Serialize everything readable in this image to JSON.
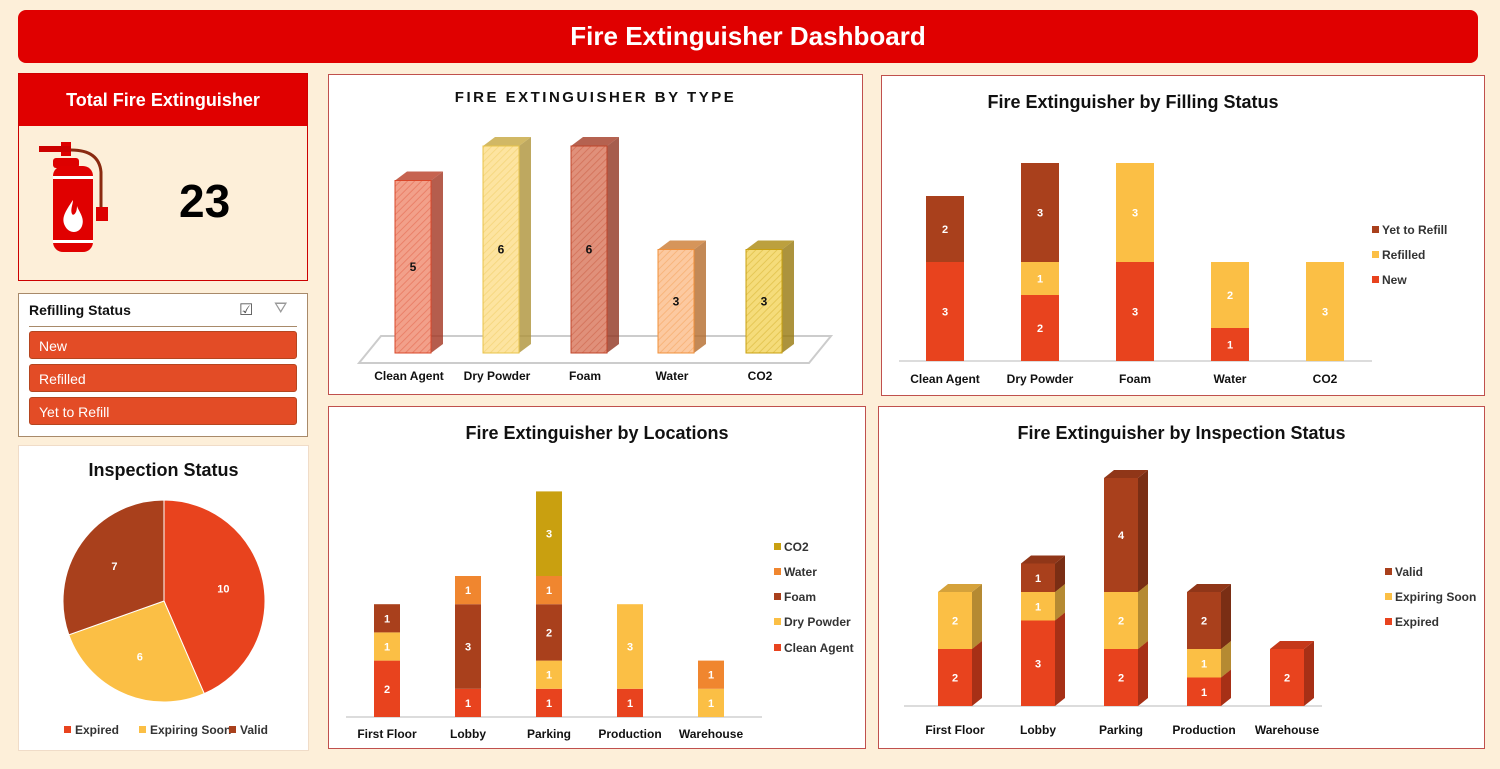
{
  "header": {
    "title": "Fire Extinguisher Dashboard"
  },
  "total_card": {
    "title": "Total Fire Extinguisher",
    "value": "23",
    "icon": "fire-extinguisher-icon"
  },
  "slicer": {
    "title": "Refilling Status",
    "items": [
      "New",
      "Refilled",
      "Yet to Refill"
    ],
    "icons": [
      "multi-select-icon",
      "clear-filter-icon"
    ]
  },
  "colors": {
    "red": "#e8431e",
    "yellow": "#fbbf45",
    "brown": "#a9401c",
    "orange": "#f0862f",
    "gold": "#c9a010",
    "header": "#e00000"
  },
  "chart_data": [
    {
      "id": "pie",
      "type": "pie",
      "title": "Inspection Status",
      "categories": [
        "Expired",
        "Expiring Soon",
        "Valid"
      ],
      "values": [
        10,
        6,
        7
      ],
      "colors": [
        "#e8431e",
        "#fbbf45",
        "#a9401c"
      ],
      "legend": "bottom"
    },
    {
      "id": "type",
      "type": "bar",
      "title": "FIRE EXTINGUISHER BY TYPE",
      "categories": [
        "Clean Agent",
        "Dry Powder",
        "Foam",
        "Water",
        "CO2"
      ],
      "values": [
        5,
        6,
        6,
        3,
        3
      ],
      "colors": [
        "#f2a08a",
        "#fde4a0",
        "#e0907a",
        "#fcc9a0",
        "#f5dc7a"
      ],
      "edges": [
        "#d9472a",
        "#e8c34a",
        "#c0452a",
        "#f0903a",
        "#c9a010"
      ],
      "ylim": [
        0,
        6
      ]
    },
    {
      "id": "filling",
      "type": "bar",
      "stacked": true,
      "title": "Fire Extinguisher by  Filling Status",
      "categories": [
        "Clean Agent",
        "Dry Powder",
        "Foam",
        "Water",
        "CO2"
      ],
      "series": [
        {
          "name": "New",
          "values": [
            3,
            2,
            3,
            1,
            0
          ],
          "color": "#e8431e"
        },
        {
          "name": "Refilled",
          "values": [
            0,
            1,
            3,
            2,
            3
          ],
          "color": "#fbbf45"
        },
        {
          "name": "Yet to Refill",
          "values": [
            2,
            3,
            0,
            0,
            0
          ],
          "color": "#a9401c"
        }
      ],
      "legend": "right",
      "legend_order": [
        "Yet to Refill",
        "Refilled",
        "New"
      ]
    },
    {
      "id": "locations",
      "type": "bar",
      "stacked": true,
      "title": "Fire Extinguisher by Locations",
      "categories": [
        "First Floor",
        "Lobby",
        "Parking",
        "Production",
        "Warehouse"
      ],
      "series": [
        {
          "name": "Clean Agent",
          "values": [
            2,
            1,
            1,
            1,
            0
          ],
          "color": "#e8431e"
        },
        {
          "name": "Dry Powder",
          "values": [
            1,
            0,
            1,
            3,
            1
          ],
          "color": "#fbbf45"
        },
        {
          "name": "Foam",
          "values": [
            1,
            3,
            2,
            0,
            0
          ],
          "color": "#a9401c"
        },
        {
          "name": "Water",
          "values": [
            0,
            1,
            1,
            0,
            1
          ],
          "color": "#f0862f"
        },
        {
          "name": "CO2",
          "values": [
            0,
            0,
            3,
            0,
            0
          ],
          "color": "#c9a010"
        }
      ],
      "legend": "right",
      "legend_order": [
        "CO2",
        "Water",
        "Foam",
        "Dry Powder",
        "Clean Agent"
      ]
    },
    {
      "id": "inspection",
      "type": "bar",
      "stacked": true,
      "title": "Fire Extinguisher by Inspection Status",
      "categories": [
        "First Floor",
        "Lobby",
        "Parking",
        "Production",
        "Warehouse"
      ],
      "series": [
        {
          "name": "Expired",
          "values": [
            2,
            3,
            2,
            1,
            2
          ],
          "color": "#e8431e"
        },
        {
          "name": "Expiring Soon",
          "values": [
            2,
            1,
            2,
            1,
            0
          ],
          "color": "#fbbf45"
        },
        {
          "name": "Valid",
          "values": [
            0,
            1,
            4,
            2,
            0
          ],
          "color": "#a9401c"
        }
      ],
      "legend": "right",
      "legend_order": [
        "Valid",
        "Expiring Soon",
        "Expired"
      ]
    }
  ]
}
